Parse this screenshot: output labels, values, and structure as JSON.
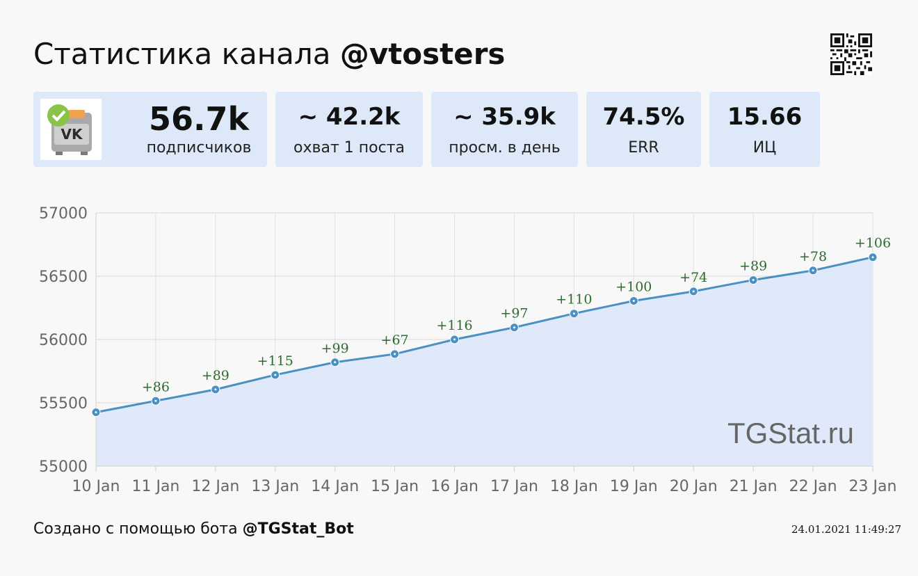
{
  "header": {
    "title_prefix": "Статистика канала ",
    "title_handle": "@vtosters"
  },
  "stats": [
    {
      "value": "56.7k",
      "label": "подписчиков"
    },
    {
      "value": "~ 42.2k",
      "label": "охват 1 поста"
    },
    {
      "value": "~ 35.9k",
      "label": "просм. в день"
    },
    {
      "value": "74.5%",
      "label": "ERR"
    },
    {
      "value": "15.66",
      "label": "ИЦ"
    }
  ],
  "avatar": {
    "text": "VK",
    "icon": "vk-channel-avatar",
    "badge": "verified-check-icon"
  },
  "watermark": "TGStat.ru",
  "footer": {
    "created_prefix": "Создано с помощью бота ",
    "bot": "@TGStat_Bot",
    "timestamp": "24.01.2021 11:49:27"
  },
  "colors": {
    "line": "#4a90c2",
    "fill": "#dfe9fa",
    "delta_text": "#2e6b2e",
    "card_bg": "#dde8f8"
  },
  "chart_data": {
    "type": "area",
    "title": "",
    "xlabel": "",
    "ylabel": "",
    "x": [
      "10 Jan",
      "11 Jan",
      "12 Jan",
      "13 Jan",
      "14 Jan",
      "15 Jan",
      "16 Jan",
      "17 Jan",
      "18 Jan",
      "19 Jan",
      "20 Jan",
      "21 Jan",
      "22 Jan",
      "23 Jan"
    ],
    "series": [
      {
        "values": [
          55425,
          55515,
          55605,
          55720,
          55820,
          55885,
          56000,
          56095,
          56205,
          56305,
          56380,
          56470,
          56545,
          56650
        ]
      }
    ],
    "annotations": [
      "",
      "+86",
      "+89",
      "+115",
      "+99",
      "+67",
      "+116",
      "+97",
      "+110",
      "+100",
      "+74",
      "+89",
      "+78",
      "+106"
    ],
    "ylim": [
      55000,
      57000
    ],
    "yticks": [
      "55000",
      "55500",
      "56000",
      "56500",
      "57000"
    ],
    "grid": true
  }
}
